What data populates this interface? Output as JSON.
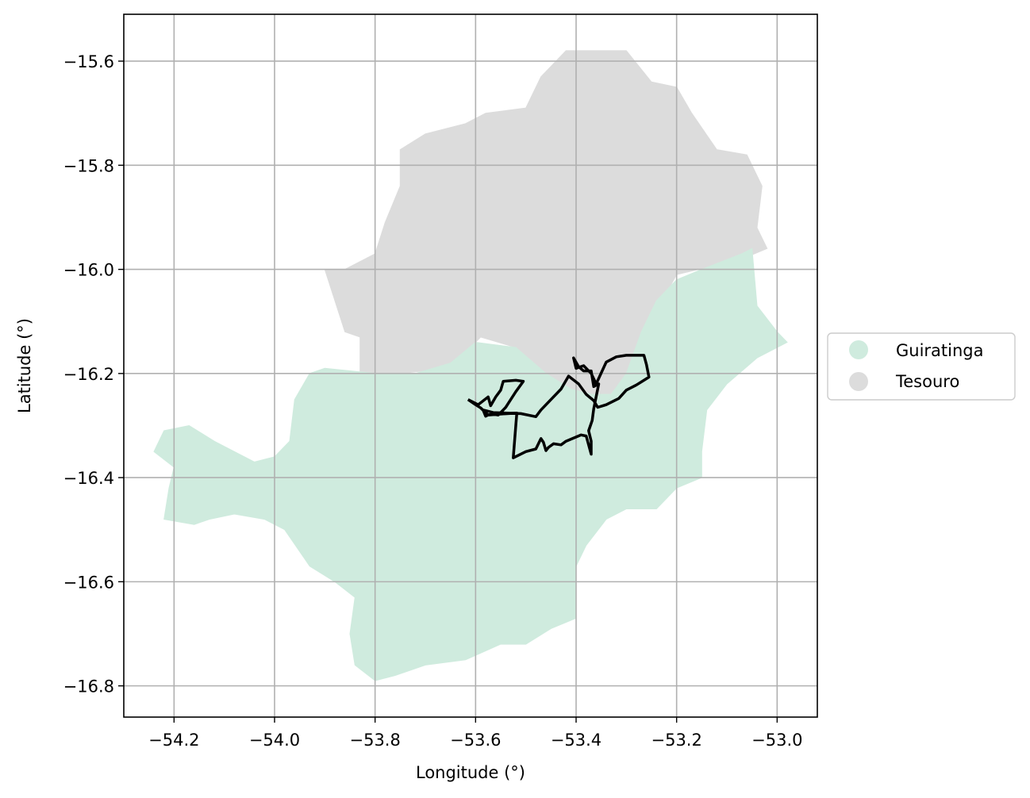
{
  "chart_data": {
    "type": "map",
    "xlabel": "Longitude (°)",
    "ylabel": "Latitude (°)",
    "xlim": [
      -54.3,
      -52.92
    ],
    "ylim": [
      -16.86,
      -15.51
    ],
    "x_ticks": [
      -54.2,
      -54.0,
      -53.8,
      -53.6,
      -53.4,
      -53.2,
      -53.0
    ],
    "x_tick_labels": [
      "−54.2",
      "−54.0",
      "−53.8",
      "−53.6",
      "−53.4",
      "−53.2",
      "−53.0"
    ],
    "y_ticks": [
      -15.6,
      -15.8,
      -16.0,
      -16.2,
      -16.4,
      -16.6,
      -16.8
    ],
    "y_tick_labels": [
      "−15.6",
      "−15.8",
      "−16.0",
      "−16.2",
      "−16.4",
      "−16.6",
      "−16.8"
    ],
    "grid": true,
    "legend_position": "right, outside",
    "legend": [
      {
        "label": "Guiratinga",
        "color": "#cfebde"
      },
      {
        "label": "Tesouro",
        "color": "#dcdcdc"
      }
    ],
    "regions": [
      {
        "name": "Tesouro",
        "color": "#dcdcdc",
        "polygon": [
          [
            -53.42,
            -15.58
          ],
          [
            -53.3,
            -15.58
          ],
          [
            -53.25,
            -15.64
          ],
          [
            -53.2,
            -15.65
          ],
          [
            -53.17,
            -15.7
          ],
          [
            -53.12,
            -15.77
          ],
          [
            -53.06,
            -15.78
          ],
          [
            -53.03,
            -15.84
          ],
          [
            -53.04,
            -15.92
          ],
          [
            -53.02,
            -15.96
          ],
          [
            -53.07,
            -15.98
          ],
          [
            -53.2,
            -16.01
          ],
          [
            -53.24,
            -16.08
          ],
          [
            -53.27,
            -16.13
          ],
          [
            -53.3,
            -16.2
          ],
          [
            -53.34,
            -16.25
          ],
          [
            -53.4,
            -16.25
          ],
          [
            -53.45,
            -16.22
          ],
          [
            -53.48,
            -16.2
          ],
          [
            -53.52,
            -16.15
          ],
          [
            -53.59,
            -16.13
          ],
          [
            -53.65,
            -16.19
          ],
          [
            -53.75,
            -16.2
          ],
          [
            -53.83,
            -16.2
          ],
          [
            -53.83,
            -16.13
          ],
          [
            -53.86,
            -16.12
          ],
          [
            -53.88,
            -16.06
          ],
          [
            -53.9,
            -16.0
          ],
          [
            -53.86,
            -16.0
          ],
          [
            -53.8,
            -15.97
          ],
          [
            -53.78,
            -15.91
          ],
          [
            -53.75,
            -15.84
          ],
          [
            -53.75,
            -15.77
          ],
          [
            -53.7,
            -15.74
          ],
          [
            -53.62,
            -15.72
          ],
          [
            -53.58,
            -15.7
          ],
          [
            -53.5,
            -15.69
          ],
          [
            -53.47,
            -15.63
          ]
        ]
      },
      {
        "name": "Guiratinga",
        "color": "#cfebde",
        "polygon": [
          [
            -53.05,
            -15.96
          ],
          [
            -53.04,
            -16.07
          ],
          [
            -53.0,
            -16.12
          ],
          [
            -52.98,
            -16.14
          ],
          [
            -53.04,
            -16.17
          ],
          [
            -53.1,
            -16.22
          ],
          [
            -53.14,
            -16.27
          ],
          [
            -53.15,
            -16.35
          ],
          [
            -53.15,
            -16.4
          ],
          [
            -53.2,
            -16.42
          ],
          [
            -53.24,
            -16.46
          ],
          [
            -53.3,
            -16.46
          ],
          [
            -53.34,
            -16.48
          ],
          [
            -53.38,
            -16.53
          ],
          [
            -53.4,
            -16.57
          ],
          [
            -53.4,
            -16.67
          ],
          [
            -53.45,
            -16.69
          ],
          [
            -53.5,
            -16.72
          ],
          [
            -53.55,
            -16.72
          ],
          [
            -53.62,
            -16.75
          ],
          [
            -53.7,
            -16.76
          ],
          [
            -53.76,
            -16.78
          ],
          [
            -53.8,
            -16.79
          ],
          [
            -53.84,
            -16.76
          ],
          [
            -53.85,
            -16.7
          ],
          [
            -53.84,
            -16.63
          ],
          [
            -53.88,
            -16.6
          ],
          [
            -53.93,
            -16.57
          ],
          [
            -53.98,
            -16.5
          ],
          [
            -54.02,
            -16.48
          ],
          [
            -54.08,
            -16.47
          ],
          [
            -54.13,
            -16.48
          ],
          [
            -54.16,
            -16.49
          ],
          [
            -54.22,
            -16.48
          ],
          [
            -54.21,
            -16.42
          ],
          [
            -54.2,
            -16.38
          ],
          [
            -54.24,
            -16.35
          ],
          [
            -54.22,
            -16.31
          ],
          [
            -54.17,
            -16.3
          ],
          [
            -54.12,
            -16.33
          ],
          [
            -54.08,
            -16.35
          ],
          [
            -54.04,
            -16.37
          ],
          [
            -54.0,
            -16.36
          ],
          [
            -53.97,
            -16.33
          ],
          [
            -53.96,
            -16.25
          ],
          [
            -53.93,
            -16.2
          ],
          [
            -53.9,
            -16.19
          ],
          [
            -53.8,
            -16.2
          ],
          [
            -53.72,
            -16.2
          ],
          [
            -53.65,
            -16.18
          ],
          [
            -53.6,
            -16.14
          ],
          [
            -53.52,
            -16.15
          ],
          [
            -53.46,
            -16.2
          ],
          [
            -53.41,
            -16.23
          ],
          [
            -53.37,
            -16.24
          ],
          [
            -53.33,
            -16.24
          ],
          [
            -53.3,
            -16.2
          ],
          [
            -53.27,
            -16.12
          ],
          [
            -53.24,
            -16.06
          ],
          [
            -53.2,
            -16.02
          ],
          [
            -53.15,
            -16.0
          ],
          [
            -53.07,
            -15.97
          ]
        ]
      }
    ],
    "boundary_line": {
      "color": "#000000",
      "points": [
        [
          -53.615,
          -16.25
        ],
        [
          -53.595,
          -16.26
        ],
        [
          -53.575,
          -16.245
        ],
        [
          -53.57,
          -16.262
        ],
        [
          -53.56,
          -16.245
        ],
        [
          -53.55,
          -16.232
        ],
        [
          -53.545,
          -16.215
        ],
        [
          -53.52,
          -16.213
        ],
        [
          -53.505,
          -16.215
        ],
        [
          -53.52,
          -16.235
        ],
        [
          -53.54,
          -16.265
        ],
        [
          -53.555,
          -16.28
        ],
        [
          -53.57,
          -16.277
        ],
        [
          -53.58,
          -16.282
        ],
        [
          -53.585,
          -16.27
        ],
        [
          -53.565,
          -16.275
        ],
        [
          -53.51,
          -16.277
        ],
        [
          -53.48,
          -16.283
        ],
        [
          -53.47,
          -16.27
        ],
        [
          -53.45,
          -16.25
        ],
        [
          -53.43,
          -16.23
        ],
        [
          -53.415,
          -16.205
        ],
        [
          -53.395,
          -16.22
        ],
        [
          -53.38,
          -16.24
        ],
        [
          -53.365,
          -16.252
        ],
        [
          -53.357,
          -16.265
        ],
        [
          -53.34,
          -16.26
        ],
        [
          -53.315,
          -16.248
        ],
        [
          -53.3,
          -16.232
        ],
        [
          -53.28,
          -16.222
        ],
        [
          -53.265,
          -16.213
        ],
        [
          -53.255,
          -16.207
        ],
        [
          -53.26,
          -16.183
        ],
        [
          -53.265,
          -16.165
        ],
        [
          -53.3,
          -16.165
        ],
        [
          -53.32,
          -16.168
        ],
        [
          -53.34,
          -16.178
        ],
        [
          -53.36,
          -16.22
        ],
        [
          -53.37,
          -16.2
        ],
        [
          -53.385,
          -16.185
        ],
        [
          -53.4,
          -16.19
        ],
        [
          -53.405,
          -16.17
        ],
        [
          -53.395,
          -16.187
        ],
        [
          -53.385,
          -16.195
        ],
        [
          -53.37,
          -16.195
        ],
        [
          -53.365,
          -16.225
        ],
        [
          -53.355,
          -16.22
        ],
        [
          -53.365,
          -16.268
        ],
        [
          -53.368,
          -16.29
        ],
        [
          -53.375,
          -16.31
        ],
        [
          -53.37,
          -16.33
        ],
        [
          -53.37,
          -16.355
        ],
        [
          -53.38,
          -16.32
        ],
        [
          -53.39,
          -16.318
        ],
        [
          -53.42,
          -16.33
        ],
        [
          -53.43,
          -16.337
        ],
        [
          -53.445,
          -16.335
        ],
        [
          -53.455,
          -16.342
        ],
        [
          -53.46,
          -16.348
        ],
        [
          -53.465,
          -16.332
        ],
        [
          -53.47,
          -16.325
        ],
        [
          -53.48,
          -16.345
        ],
        [
          -53.5,
          -16.35
        ],
        [
          -53.525,
          -16.362
        ],
        [
          -53.52,
          -16.3
        ],
        [
          -53.518,
          -16.276
        ],
        [
          -53.55,
          -16.278
        ],
        [
          -53.575,
          -16.28
        ],
        [
          -53.59,
          -16.266
        ],
        [
          -53.6,
          -16.26
        ],
        [
          -53.615,
          -16.25
        ]
      ]
    }
  }
}
